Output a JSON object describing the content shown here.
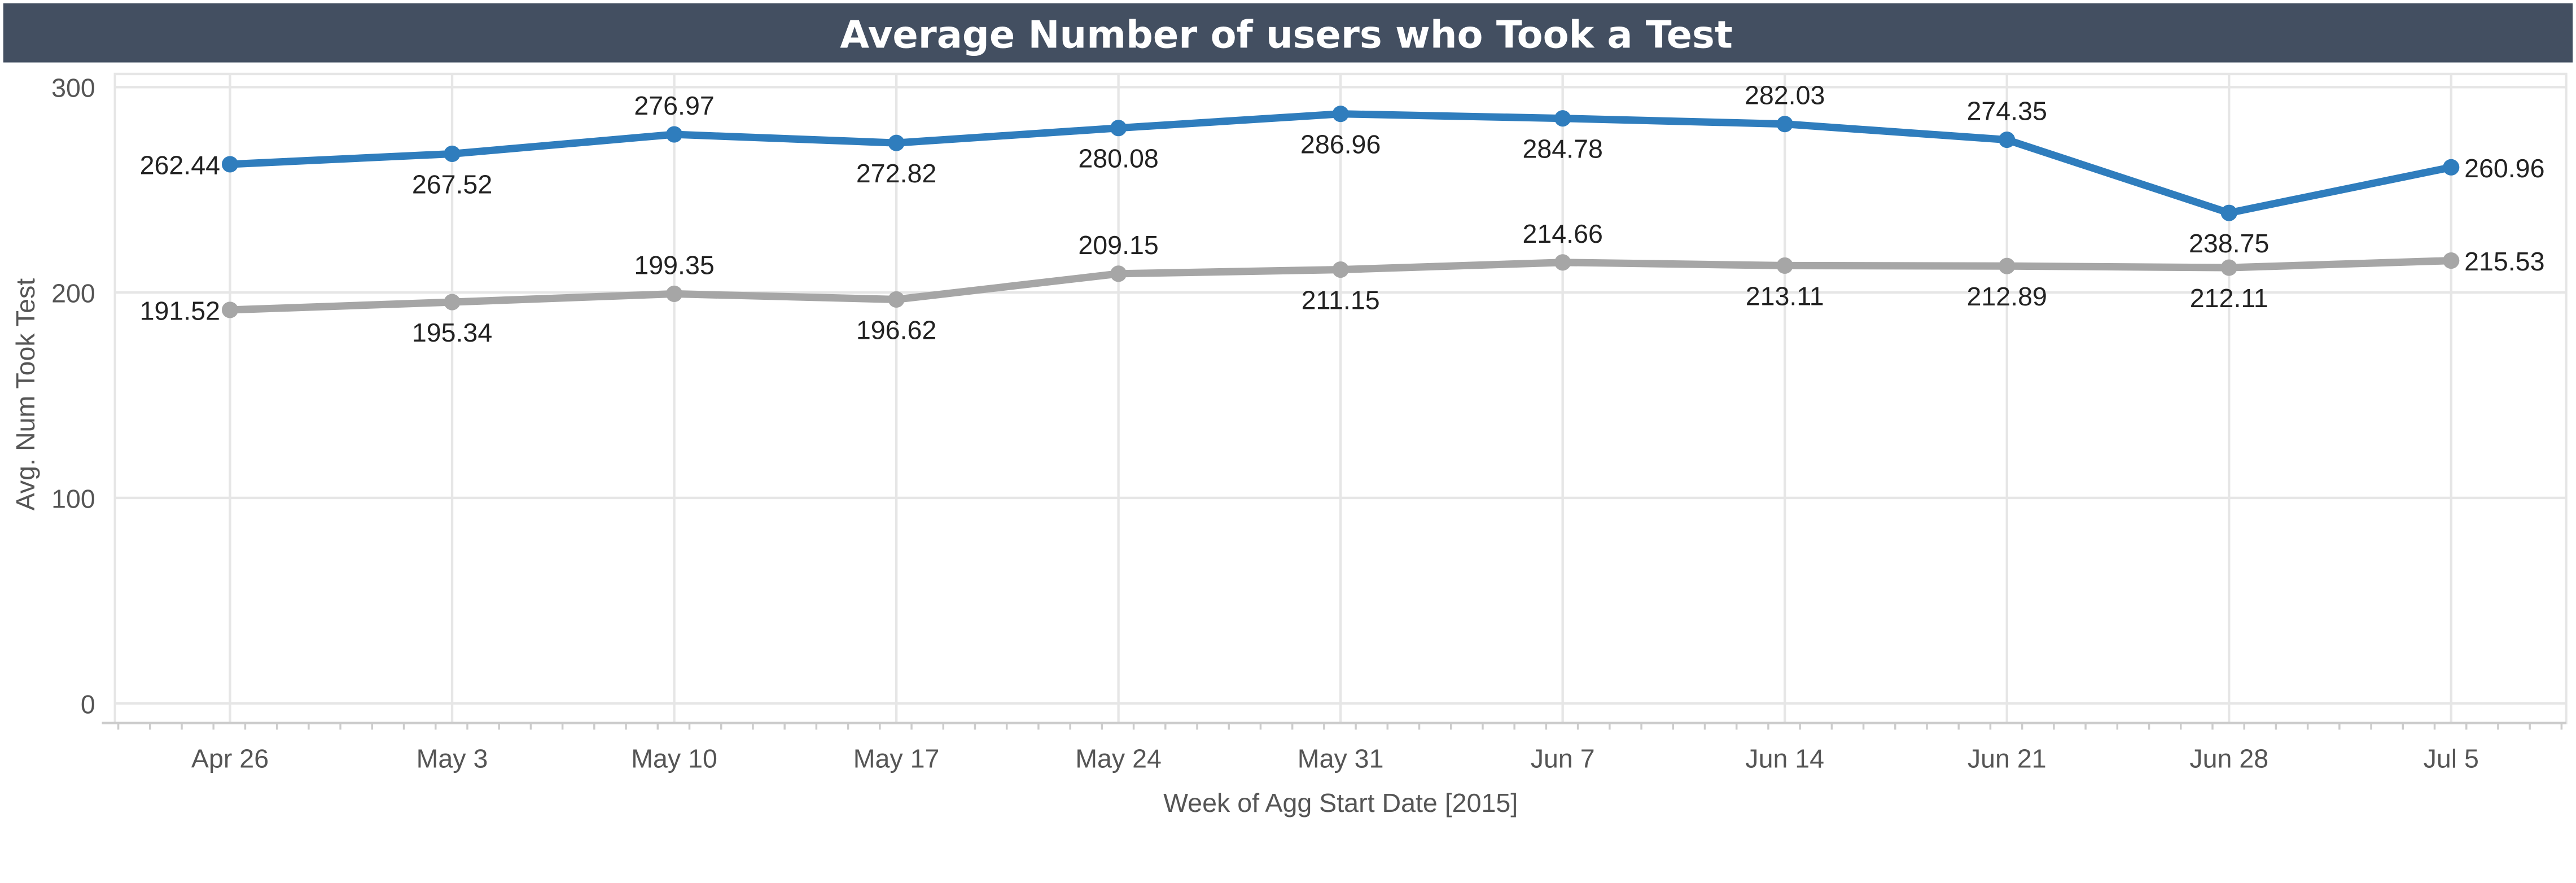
{
  "chart_data": {
    "type": "line",
    "title": "Average Number of users who Took a Test",
    "xlabel": "Week of Agg Start Date [2015]",
    "ylabel": "Avg. Num Took Test",
    "ylim": [
      0,
      300
    ],
    "yticks": [
      0,
      100,
      200,
      300
    ],
    "grid": true,
    "categories": [
      "Apr 26",
      "May 3",
      "May 10",
      "May 17",
      "May 24",
      "May 31",
      "Jun 7",
      "Jun 14",
      "Jun 21",
      "Jun 28",
      "Jul 5"
    ],
    "series": [
      {
        "name": "series-blue",
        "color": "#2f7dbd",
        "values": [
          262.44,
          267.52,
          276.97,
          272.82,
          280.08,
          286.96,
          284.78,
          282.03,
          274.35,
          238.75,
          260.96
        ],
        "labels": [
          "262.44",
          "267.52",
          "276.97",
          "272.82",
          "280.08",
          "286.96",
          "284.78",
          "282.03",
          "274.35",
          "238.75",
          "260.96"
        ]
      },
      {
        "name": "series-gray",
        "color": "#a6a6a6",
        "values": [
          191.52,
          195.34,
          199.35,
          196.62,
          209.15,
          211.15,
          214.66,
          213.11,
          212.89,
          212.11,
          215.53
        ],
        "labels": [
          "191.52",
          "195.34",
          "199.35",
          "196.62",
          "209.15",
          "211.15",
          "214.66",
          "213.11",
          "212.89",
          "212.11",
          "215.53"
        ]
      }
    ]
  },
  "colors": {
    "header_bg": "#434f61",
    "header_text": "#ffffff",
    "axis_text": "#555555",
    "grid": "#e6e6e6",
    "axis_line": "#cccccc"
  }
}
